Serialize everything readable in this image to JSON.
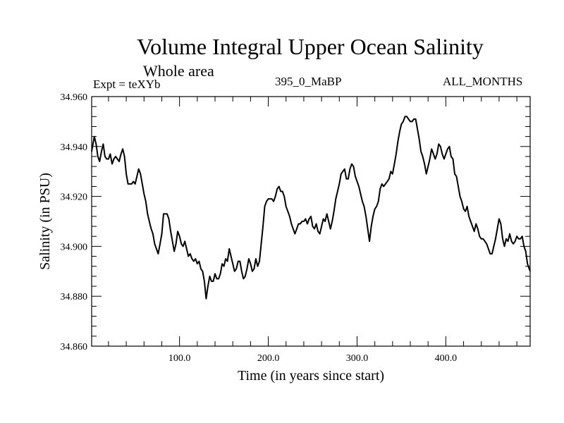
{
  "header": {
    "title": "Volume Integral Upper Ocean Salinity",
    "subtitle": "Whole area",
    "experiment": "Expt = teXYb",
    "run_id": "395_0_MaBP",
    "months": "ALL_MONTHS"
  },
  "chart_data": {
    "type": "line",
    "title": "Volume Integral Upper Ocean Salinity",
    "subtitle": "Whole area",
    "xlabel": "Time (in years since start)",
    "ylabel": "Salinity (in PSU)",
    "xlim": [
      1,
      495
    ],
    "ylim": [
      34.86,
      34.96
    ],
    "x_ticks": [
      100,
      200,
      300,
      400
    ],
    "x_tick_labels": [
      "100.0",
      "200.0",
      "300.0",
      "400.0"
    ],
    "y_ticks": [
      34.86,
      34.88,
      34.9,
      34.92,
      34.94,
      34.96
    ],
    "y_tick_labels": [
      "34.860",
      "34.880",
      "34.900",
      "34.920",
      "34.940",
      "34.960"
    ],
    "grid": false,
    "series": [
      {
        "name": "Salinity",
        "x": [
          1,
          4,
          6,
          8,
          10,
          12,
          14,
          16,
          18,
          20,
          22,
          24,
          26,
          28,
          30,
          32,
          34,
          36,
          38,
          40,
          42,
          44,
          46,
          48,
          50,
          52,
          54,
          56,
          58,
          60,
          62,
          64,
          66,
          68,
          70,
          72,
          74,
          76,
          78,
          80,
          82,
          84,
          86,
          88,
          90,
          92,
          94,
          96,
          98,
          100,
          102,
          104,
          106,
          108,
          110,
          112,
          114,
          116,
          118,
          120,
          122,
          124,
          126,
          128,
          130,
          132,
          134,
          136,
          138,
          140,
          142,
          144,
          146,
          148,
          150,
          152,
          154,
          156,
          158,
          160,
          162,
          164,
          166,
          168,
          170,
          172,
          174,
          176,
          178,
          180,
          182,
          184,
          186,
          188,
          190,
          192,
          194,
          196,
          198,
          200,
          202,
          204,
          206,
          208,
          210,
          212,
          214,
          216,
          218,
          220,
          222,
          224,
          226,
          228,
          230,
          232,
          234,
          236,
          238,
          240,
          242,
          244,
          246,
          248,
          250,
          252,
          254,
          256,
          258,
          260,
          262,
          264,
          266,
          268,
          270,
          272,
          274,
          276,
          278,
          280,
          282,
          284,
          286,
          288,
          290,
          292,
          294,
          296,
          298,
          300,
          302,
          304,
          306,
          308,
          310,
          312,
          314,
          316,
          318,
          320,
          322,
          324,
          326,
          328,
          330,
          332,
          334,
          336,
          338,
          340,
          342,
          344,
          346,
          348,
          350,
          352,
          354,
          356,
          358,
          360,
          362,
          364,
          366,
          368,
          370,
          372,
          374,
          376,
          378,
          380,
          382,
          384,
          386,
          388,
          390,
          392,
          394,
          396,
          398,
          400,
          402,
          404,
          406,
          408,
          410,
          412,
          414,
          416,
          418,
          420,
          422,
          424,
          426,
          428,
          430,
          432,
          434,
          436,
          438,
          440,
          442,
          444,
          446,
          448,
          450,
          452,
          454,
          456,
          458,
          460,
          462,
          464,
          466,
          468,
          470,
          472,
          474,
          476,
          478,
          480,
          482,
          484,
          486,
          488,
          490,
          492,
          495
        ],
        "values": [
          34.938,
          34.944,
          34.941,
          34.936,
          34.934,
          34.938,
          34.941,
          34.936,
          34.935,
          34.935,
          34.937,
          34.933,
          34.935,
          34.936,
          34.935,
          34.934,
          34.937,
          34.939,
          34.936,
          34.929,
          34.925,
          34.925,
          34.925,
          34.926,
          34.925,
          34.928,
          34.931,
          34.929,
          34.925,
          34.921,
          34.918,
          34.913,
          34.91,
          34.907,
          34.905,
          34.901,
          34.899,
          34.897,
          34.901,
          34.905,
          34.913,
          34.913,
          34.913,
          34.911,
          34.906,
          34.902,
          34.898,
          34.901,
          34.906,
          34.904,
          34.901,
          34.9,
          34.902,
          34.899,
          34.896,
          34.897,
          34.895,
          34.894,
          34.895,
          34.893,
          34.894,
          34.891,
          34.89,
          34.886,
          34.879,
          34.884,
          34.888,
          34.886,
          34.886,
          34.889,
          34.887,
          34.887,
          34.889,
          34.893,
          34.892,
          34.895,
          34.894,
          34.899,
          34.896,
          34.893,
          34.89,
          34.891,
          34.894,
          34.894,
          34.89,
          34.887,
          34.888,
          34.891,
          34.895,
          34.893,
          34.89,
          34.891,
          34.895,
          34.892,
          34.894,
          34.901,
          34.908,
          34.916,
          34.918,
          34.919,
          34.919,
          34.919,
          34.918,
          34.92,
          34.923,
          34.924,
          34.922,
          34.922,
          34.92,
          34.916,
          34.914,
          34.912,
          34.909,
          34.907,
          34.905,
          34.907,
          34.909,
          34.909,
          34.91,
          34.91,
          34.911,
          34.909,
          34.911,
          34.912,
          34.908,
          34.907,
          34.909,
          34.906,
          34.905,
          34.908,
          34.911,
          34.91,
          34.913,
          34.91,
          34.907,
          34.91,
          34.914,
          34.919,
          34.922,
          34.925,
          34.929,
          34.93,
          34.931,
          34.927,
          34.927,
          34.931,
          34.933,
          34.932,
          34.928,
          34.926,
          34.924,
          34.921,
          34.918,
          34.916,
          34.912,
          34.907,
          34.902,
          34.908,
          34.912,
          34.915,
          34.916,
          34.918,
          34.923,
          34.925,
          34.924,
          34.925,
          34.926,
          34.927,
          34.93,
          34.929,
          34.933,
          34.937,
          34.942,
          34.946,
          34.949,
          34.95,
          34.952,
          34.952,
          34.951,
          34.95,
          34.95,
          34.951,
          34.951,
          34.947,
          34.943,
          34.938,
          34.936,
          34.933,
          34.929,
          34.932,
          34.935,
          34.939,
          34.937,
          34.935,
          34.937,
          34.941,
          34.94,
          34.937,
          34.935,
          34.937,
          34.939,
          34.94,
          34.936,
          34.935,
          34.929,
          34.928,
          34.924,
          34.92,
          34.918,
          34.915,
          34.914,
          34.916,
          34.912,
          34.91,
          34.908,
          34.906,
          34.909,
          34.907,
          34.904,
          34.903,
          34.903,
          34.902,
          34.901,
          34.899,
          34.897,
          34.897,
          34.9,
          34.903,
          34.907,
          34.911,
          34.909,
          34.903,
          34.9,
          34.903,
          34.902,
          34.905,
          34.902,
          34.901,
          34.902,
          34.904,
          34.903,
          34.903,
          34.904,
          34.9,
          34.898,
          34.893,
          34.89
        ]
      }
    ]
  }
}
